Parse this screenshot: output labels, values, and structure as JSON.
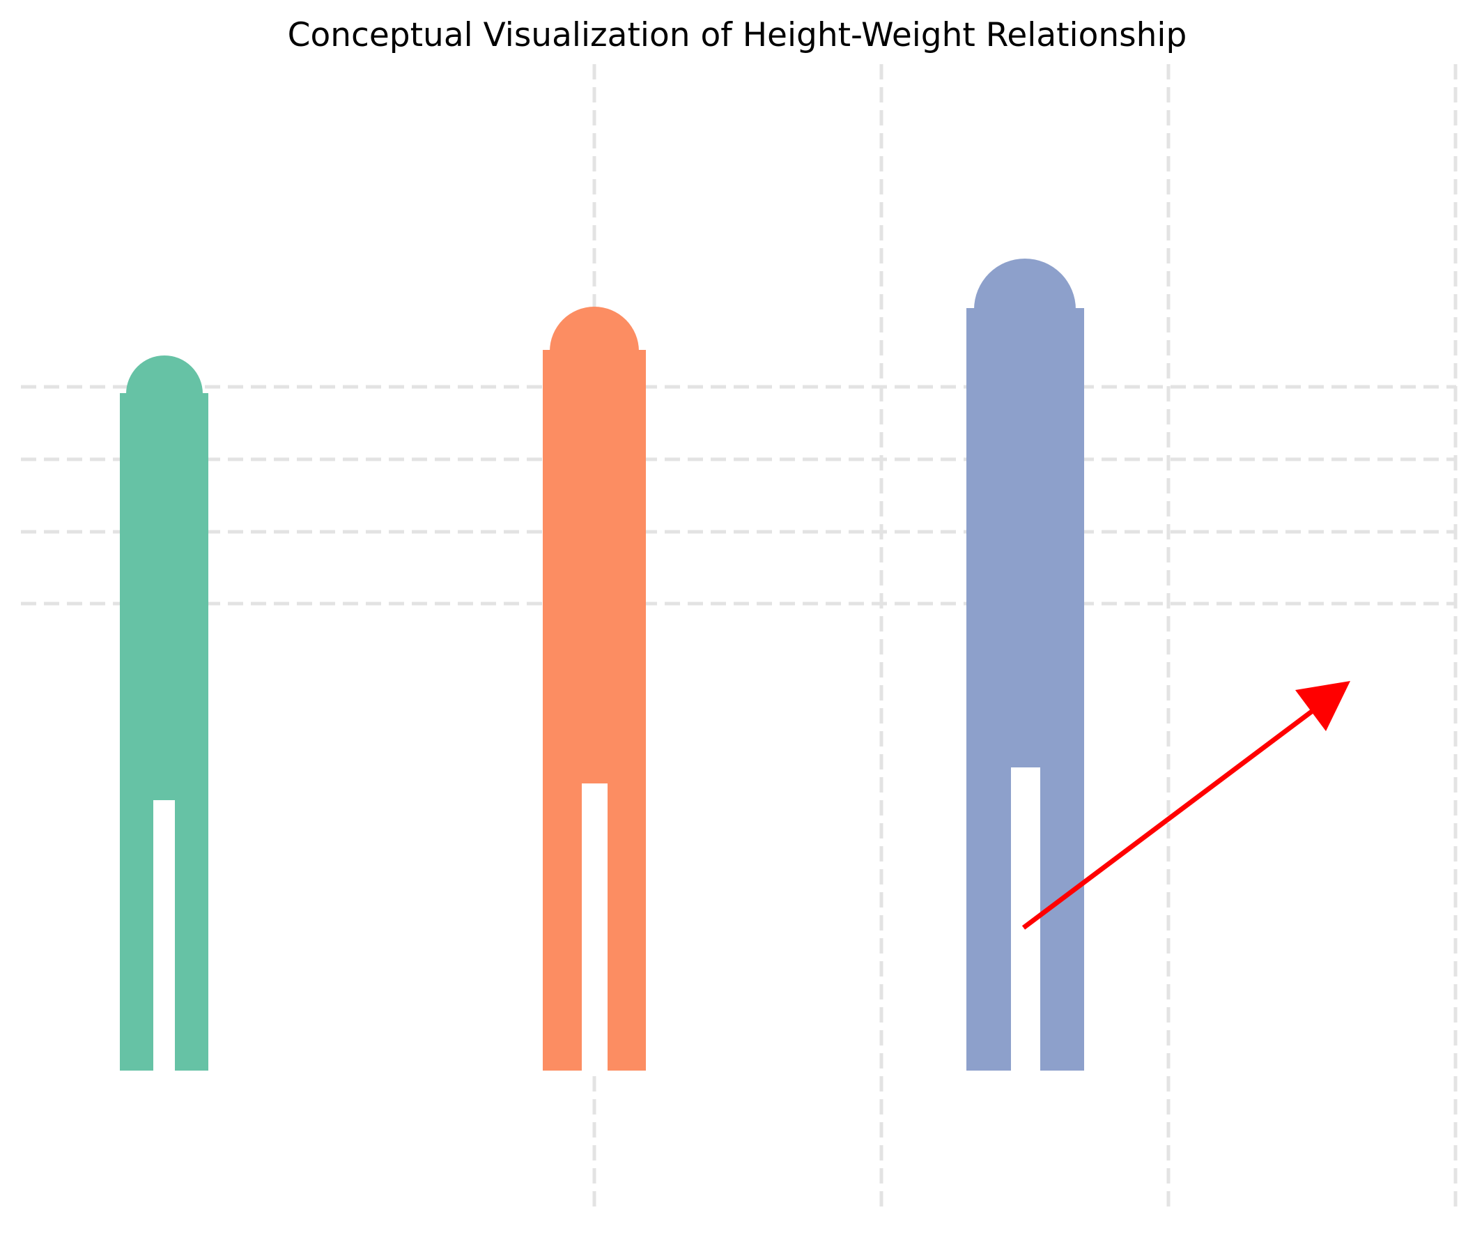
{
  "title": "Conceptual Visualization of Height-Weight Relationship",
  "colors": {
    "background": "#ffffff",
    "grid": "#e3e3e3",
    "arrow": "#ff0000",
    "title": "#000000"
  },
  "figures": [
    {
      "name": "figure-short-thin",
      "color": "#66c2a5",
      "relative_height": "short",
      "relative_width": "narrow"
    },
    {
      "name": "figure-medium",
      "color": "#fc8d62",
      "relative_height": "medium",
      "relative_width": "medium"
    },
    {
      "name": "figure-tall-wide",
      "color": "#8da0cb",
      "relative_height": "tall",
      "relative_width": "wide"
    }
  ],
  "trend_arrow": {
    "meaning": "increasing height and weight",
    "color": "#ff0000"
  },
  "grid": {
    "style": "dashed",
    "visible": true
  }
}
